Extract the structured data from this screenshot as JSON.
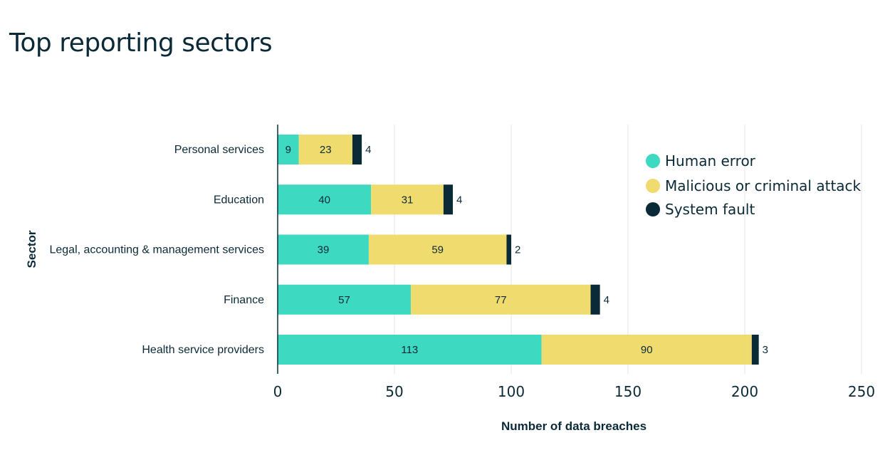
{
  "chart_data": {
    "type": "bar",
    "orientation": "horizontal",
    "stacked": true,
    "title": "Top reporting sectors",
    "xlabel": "Number of data breaches",
    "ylabel": "Sector",
    "xlim": [
      0,
      250
    ],
    "xticks": [
      0,
      50,
      100,
      150,
      200,
      250
    ],
    "grid": true,
    "legend_position": "top-right",
    "categories": [
      "Personal services",
      "Education",
      "Legal, accounting & management services",
      "Finance",
      "Health service providers"
    ],
    "series": [
      {
        "name": "Human error",
        "color": "#3dd9c1",
        "values": [
          9,
          40,
          39,
          57,
          113
        ]
      },
      {
        "name": "Malicious or criminal attack",
        "color": "#f0dc6e",
        "values": [
          23,
          31,
          59,
          77,
          90
        ]
      },
      {
        "name": "System fault",
        "color": "#0b2a38",
        "values": [
          4,
          4,
          2,
          4,
          3
        ]
      }
    ]
  }
}
